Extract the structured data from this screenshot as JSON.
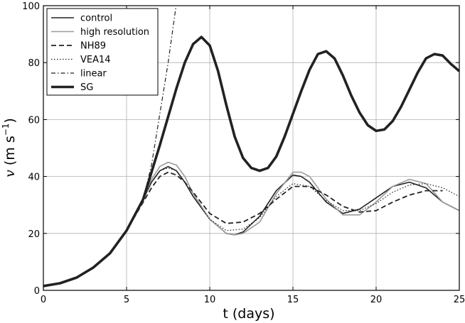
{
  "chart_data": {
    "type": "line",
    "title": "",
    "xlabel": "t (days)",
    "ylabel": {
      "var": "v",
      "unit_open": "(m s",
      "unit_exp": "−1",
      "unit_close": ")"
    },
    "xlim": [
      0,
      25
    ],
    "ylim": [
      0,
      100
    ],
    "xticks": [
      0,
      5,
      10,
      15,
      20,
      25
    ],
    "yticks": [
      0,
      20,
      40,
      60,
      80,
      100
    ],
    "grid": true,
    "legend_position": "top-left",
    "series": [
      {
        "name": "control",
        "color": "#222222",
        "width": 1.6,
        "dash": "",
        "x": [
          0,
          1,
          2,
          3,
          4,
          5,
          6,
          6.5,
          7,
          7.5,
          8,
          8.5,
          9,
          10,
          11,
          11.5,
          12,
          13,
          14,
          15,
          15.5,
          16,
          17,
          18,
          19,
          20,
          21,
          22,
          23,
          24,
          25
        ],
        "y": [
          1.5,
          2.5,
          4.5,
          8,
          13,
          21,
          32,
          38,
          42,
          43.5,
          42,
          38,
          33,
          25,
          20,
          19.5,
          20.5,
          26,
          35,
          40.5,
          40,
          38,
          31,
          27,
          28.5,
          32.5,
          36.5,
          38,
          36,
          31,
          28
        ]
      },
      {
        "name": "high resolution",
        "color": "#9a9a9a",
        "width": 1.6,
        "dash": "",
        "x": [
          0,
          1,
          2,
          3,
          4,
          5,
          6,
          6.5,
          7,
          7.5,
          8,
          8.5,
          9,
          10,
          11,
          11.5,
          12,
          13,
          14,
          15,
          15.5,
          16,
          17,
          18,
          19,
          20,
          21,
          22,
          23,
          24,
          25
        ],
        "y": [
          1.5,
          2.5,
          4.5,
          8,
          13,
          21,
          32,
          39,
          43.5,
          45,
          44,
          40,
          34,
          25,
          20,
          19.5,
          20,
          24,
          34,
          41.5,
          41.5,
          40,
          32,
          26.5,
          26.5,
          31,
          36.5,
          39,
          37.5,
          31,
          28
        ]
      },
      {
        "name": "NH89",
        "color": "#222222",
        "width": 1.8,
        "dash": "7,4",
        "x": [
          0,
          1,
          2,
          3,
          4,
          5,
          6,
          6.5,
          7,
          7.5,
          8,
          8.5,
          9,
          10,
          11,
          12,
          13,
          14,
          15,
          16,
          17,
          18,
          19,
          20,
          21,
          22,
          23,
          24
        ],
        "y": [
          1.5,
          2.5,
          4.5,
          8,
          13,
          21,
          31,
          36,
          40,
          41.5,
          40.5,
          38,
          34.5,
          27,
          23.5,
          24,
          27,
          32,
          36.5,
          36.5,
          33.5,
          29.5,
          27.5,
          28,
          31,
          33.5,
          35,
          35
        ]
      },
      {
        "name": "VEA14",
        "color": "#222222",
        "width": 1.2,
        "dash": "1.5,2.5",
        "x": [
          0,
          1,
          2,
          3,
          4,
          5,
          6,
          6.5,
          7,
          7.5,
          8,
          8.5,
          9,
          10,
          11,
          12,
          13,
          14,
          15,
          16,
          17,
          18,
          19,
          20,
          21,
          22,
          23,
          24,
          25
        ],
        "y": [
          1.5,
          2.5,
          4.5,
          8,
          13,
          21,
          32,
          38,
          42,
          43,
          42,
          38,
          33,
          25,
          21,
          21.5,
          25.5,
          33,
          37.5,
          36.5,
          31.5,
          28,
          28,
          30.5,
          34.5,
          37,
          37.5,
          36,
          33
        ]
      },
      {
        "name": "linear",
        "color": "#222222",
        "width": 1.2,
        "dash": "6,3,1.5,3",
        "x": [
          0,
          1,
          2,
          3,
          4,
          5,
          6,
          6.5,
          7,
          7.5,
          8
        ],
        "y": [
          1.5,
          2.5,
          4.5,
          8,
          13,
          21,
          32,
          44,
          62,
          80,
          101
        ]
      },
      {
        "name": "SG",
        "color": "#222222",
        "width": 3.6,
        "dash": "",
        "x": [
          0,
          1,
          2,
          3,
          4,
          5,
          6,
          7,
          8,
          8.5,
          9,
          9.5,
          10,
          10.5,
          11,
          11.5,
          12,
          12.5,
          13,
          13.5,
          14,
          14.5,
          15,
          15.5,
          16,
          16.5,
          17,
          17.5,
          18,
          18.5,
          19,
          19.5,
          20,
          20.5,
          21,
          21.5,
          22,
          22.5,
          23,
          23.5,
          24,
          24.5,
          25
        ],
        "y": [
          1.5,
          2.5,
          4.5,
          8,
          13,
          21,
          32,
          51,
          71,
          80,
          86.5,
          89,
          86,
          77,
          65,
          54,
          46.5,
          43,
          42,
          43,
          47,
          54,
          62,
          70,
          77.5,
          83,
          84,
          81.5,
          75.5,
          68.5,
          62.5,
          58,
          56,
          56.5,
          59.5,
          64.5,
          70.5,
          76.5,
          81.5,
          83,
          82.5,
          79.5,
          77
        ]
      }
    ]
  }
}
